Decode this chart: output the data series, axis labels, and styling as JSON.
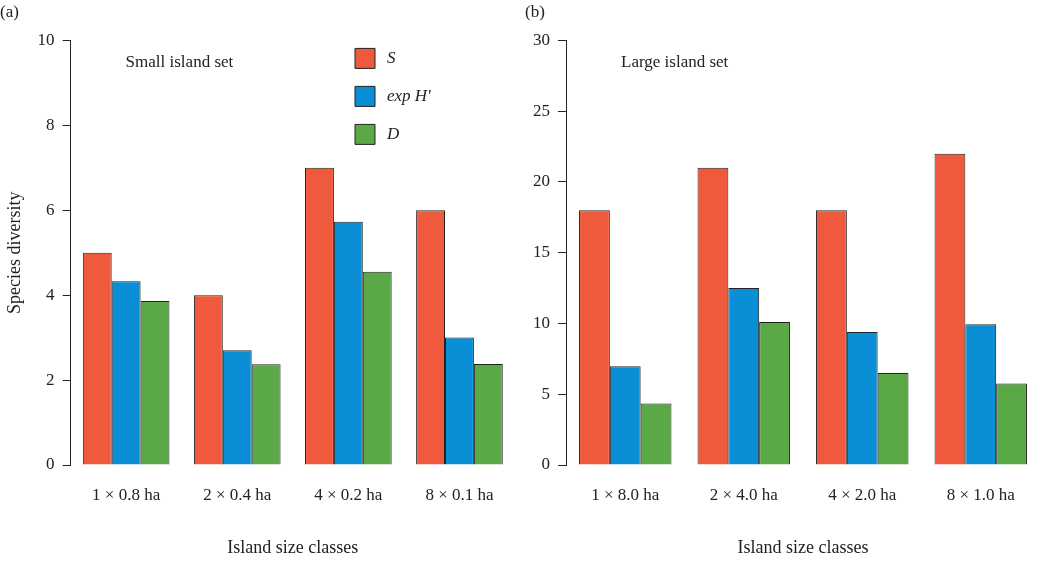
{
  "chart_data": [
    {
      "type": "bar",
      "title": "(a)",
      "xlabel": "Island size classes",
      "ylabel": "Species diversity",
      "annotations": [
        "Small island set"
      ],
      "categories": [
        "1 × 0.8 ha",
        "2 × 0.4 ha",
        "4 × 0.2 ha",
        "8 × 0.1 ha"
      ],
      "series": [
        {
          "name": "S",
          "color": "#f05a3c",
          "values": [
            5.0,
            4.0,
            7.0,
            6.0
          ]
        },
        {
          "name": "exp H'",
          "color": "#0a8fd6",
          "values": [
            4.33,
            2.7,
            5.73,
            3.0
          ]
        },
        {
          "name": "D",
          "color": "#5aa846",
          "values": [
            3.86,
            2.37,
            4.55,
            2.38
          ]
        }
      ],
      "ylim": [
        0,
        10
      ],
      "yticks": [
        0,
        2,
        4,
        6,
        8,
        10
      ],
      "grid": false,
      "legend": "top right"
    },
    {
      "type": "bar",
      "title": "(b)",
      "xlabel": "Island size classes",
      "annotations": [
        "Large island set"
      ],
      "categories": [
        "1 × 8.0 ha",
        "2 × 4.0 ha",
        "4 × 2.0 ha",
        "8 × 1.0 ha"
      ],
      "series": [
        {
          "color": "#f05a3c",
          "values": [
            18.0,
            21.0,
            18.0,
            22.0
          ]
        },
        {
          "color": "#0a8fd6",
          "values": [
            6.97,
            12.5,
            9.4,
            9.95
          ]
        },
        {
          "color": "#5aa846",
          "values": [
            4.34,
            10.1,
            6.5,
            5.76
          ]
        }
      ],
      "ylim": [
        0,
        30
      ],
      "yticks": [
        0,
        5,
        10,
        15,
        20,
        25,
        30
      ],
      "grid": false,
      "legend": false
    }
  ]
}
